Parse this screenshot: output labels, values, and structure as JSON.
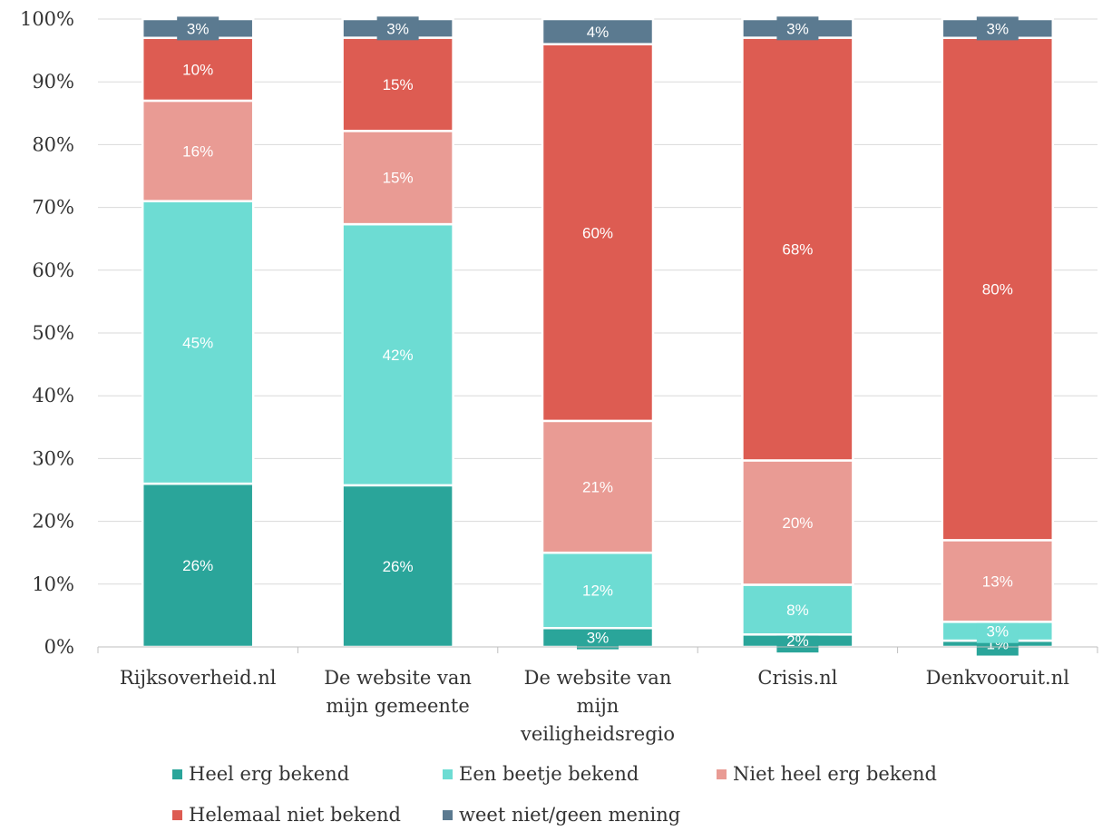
{
  "chart_data": {
    "type": "bar",
    "stacked": true,
    "percent": true,
    "title": "",
    "xlabel": "",
    "ylabel": "",
    "ylim": [
      0,
      100
    ],
    "yticks": [
      "0%",
      "10%",
      "20%",
      "30%",
      "40%",
      "50%",
      "60%",
      "70%",
      "80%",
      "90%",
      "100%"
    ],
    "grid": true,
    "legend_position": "bottom",
    "categories": [
      [
        "Rijksoverheid.nl"
      ],
      [
        "De website van",
        "mijn gemeente"
      ],
      [
        "De website van",
        "mijn",
        "veiligheidsregio"
      ],
      [
        "Crisis.nl"
      ],
      [
        "Denkvooruit.nl"
      ]
    ],
    "series": [
      {
        "name": "Heel erg bekend",
        "color": "#2aa59a",
        "values": [
          26,
          26,
          3,
          2,
          1
        ],
        "labels": [
          "26%",
          "26%",
          "3%",
          "2%",
          "1%"
        ]
      },
      {
        "name": "Een beetje bekend",
        "color": "#6ddcd3",
        "values": [
          45,
          42,
          12,
          8,
          3
        ],
        "labels": [
          "45%",
          "42%",
          "12%",
          "8%",
          "3%"
        ]
      },
      {
        "name": "Niet heel erg bekend",
        "color": "#e99b94",
        "values": [
          16,
          15,
          21,
          20,
          13
        ],
        "labels": [
          "16%",
          "15%",
          "21%",
          "20%",
          "13%"
        ]
      },
      {
        "name": "Helemaal niet bekend",
        "color": "#dd5c52",
        "values": [
          10,
          15,
          60,
          68,
          80
        ],
        "labels": [
          "10%",
          "15%",
          "60%",
          "68%",
          "80%"
        ]
      },
      {
        "name": "weet niet/geen mening",
        "color": "#5b7a90",
        "values": [
          3,
          3,
          4,
          3,
          3
        ],
        "labels": [
          "3%",
          "3%",
          "4%",
          "3%",
          "3%"
        ]
      }
    ]
  }
}
